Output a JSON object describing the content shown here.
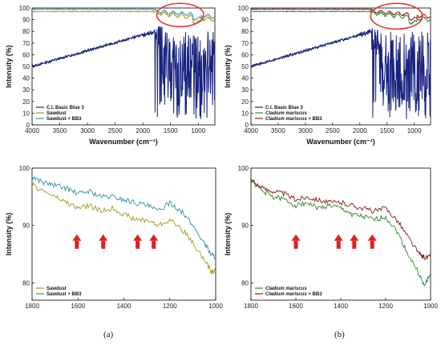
{
  "colors": {
    "navy": "#1a237e",
    "olive": "#a49b27",
    "teal": "#2f93a8",
    "green": "#2e8b2e",
    "maroon": "#8b1a1a",
    "highlight_red": "#e53935",
    "arrow_red": "#e02020"
  },
  "panel_labels": [
    "(a)",
    "(b)"
  ],
  "chart_data": [
    {
      "type": "line",
      "xlabel": "Wavenumber (cm⁻¹)",
      "ylabel": "Intensity (%)",
      "xlim": [
        4000,
        700
      ],
      "ylim": [
        0,
        100
      ],
      "xticks": [
        4000,
        3500,
        3000,
        2500,
        2000,
        1500,
        1000
      ],
      "yticks": [
        0,
        10,
        20,
        30,
        40,
        50,
        60,
        70,
        80,
        90,
        100
      ],
      "legend_position": "bottom-left",
      "highlight_ellipse": {
        "x_range": [
          1750,
          900
        ],
        "y_range": [
          84,
          104
        ]
      },
      "series": [
        {
          "name": "C.I. Basic Blue 3",
          "color_key": "navy",
          "style": "dye"
        },
        {
          "name": "Sawdust",
          "color_key": "olive",
          "style": "flat_a"
        },
        {
          "name": "Sawdust + BB3",
          "color_key": "teal",
          "style": "flat_b"
        }
      ]
    },
    {
      "type": "line",
      "xlabel": "Wavenumber (cm⁻¹)",
      "ylabel": "Intensity (%)",
      "xlim": [
        4000,
        700
      ],
      "ylim": [
        0,
        100
      ],
      "xticks": [
        4000,
        3500,
        3000,
        2500,
        2000,
        1500,
        1000
      ],
      "yticks": [
        0,
        10,
        20,
        30,
        40,
        50,
        60,
        70,
        80,
        90,
        100
      ],
      "legend_position": "bottom-left",
      "highlight_ellipse": {
        "x_range": [
          1800,
          850
        ],
        "y_range": [
          82,
          104
        ]
      },
      "series": [
        {
          "name": "C.I. Basic Blue 3",
          "color_key": "navy",
          "style": "dye"
        },
        {
          "name": "Cladium mariscus",
          "italic": true,
          "color_key": "green",
          "style": "flat_a"
        },
        {
          "name": "Cladium mariscus + BB3",
          "italic": true,
          "color_key": "maroon",
          "style": "flat_b"
        }
      ]
    },
    {
      "type": "line",
      "xlabel": "",
      "ylabel": "Intensity (%)",
      "xlim": [
        1800,
        1000
      ],
      "ylim": [
        77,
        100
      ],
      "xticks": [
        1800,
        1600,
        1400,
        1200,
        1000
      ],
      "yticks": [
        80,
        90,
        100
      ],
      "legend_position": "bottom-left",
      "arrows_at_x": [
        1605,
        1490,
        1340,
        1270
      ],
      "series": [
        {
          "name": "Sawdust",
          "color_key": "olive",
          "x": [
            1800,
            1750,
            1700,
            1650,
            1600,
            1550,
            1500,
            1450,
            1400,
            1350,
            1300,
            1250,
            1200,
            1150,
            1100,
            1050,
            1020,
            1000
          ],
          "y": [
            97,
            96,
            95,
            94,
            93,
            93.5,
            92.5,
            93,
            92,
            91,
            91,
            90,
            91,
            89.5,
            87,
            84,
            82,
            82
          ]
        },
        {
          "name": "Sawdust + BB3",
          "color_key": "teal",
          "x": [
            1800,
            1750,
            1700,
            1650,
            1600,
            1550,
            1500,
            1450,
            1400,
            1350,
            1300,
            1250,
            1200,
            1150,
            1100,
            1050,
            1020,
            1000
          ],
          "y": [
            98.5,
            97.5,
            97,
            96.5,
            95.5,
            96,
            95,
            95,
            94.5,
            94,
            93.5,
            92.5,
            94,
            92.5,
            90,
            87,
            85,
            84.5
          ]
        }
      ]
    },
    {
      "type": "line",
      "xlabel": "",
      "ylabel": "Intensity (%)",
      "xlim": [
        1800,
        1000
      ],
      "ylim": [
        77,
        100
      ],
      "xticks": [
        1800,
        1600,
        1400,
        1200,
        1000
      ],
      "yticks": [
        80,
        90,
        100
      ],
      "legend_position": "bottom-left",
      "arrows_at_x": [
        1600,
        1410,
        1340,
        1260
      ],
      "series": [
        {
          "name": "Cladium mariscus",
          "italic": true,
          "color_key": "green",
          "x": [
            1800,
            1750,
            1700,
            1650,
            1600,
            1550,
            1500,
            1450,
            1400,
            1350,
            1300,
            1250,
            1200,
            1150,
            1100,
            1050,
            1030,
            1000
          ],
          "y": [
            98,
            96,
            95,
            94.5,
            93.5,
            94,
            93,
            93.5,
            93,
            92,
            91.5,
            91,
            91.5,
            89,
            85,
            81.5,
            79.5,
            81.5
          ]
        },
        {
          "name": "Cladium mariscus + BB3",
          "italic": true,
          "color_key": "maroon",
          "x": [
            1800,
            1750,
            1700,
            1650,
            1600,
            1550,
            1500,
            1450,
            1400,
            1350,
            1300,
            1250,
            1200,
            1150,
            1100,
            1050,
            1030,
            1000
          ],
          "y": [
            98,
            96.5,
            96,
            95.5,
            94.5,
            95,
            94.5,
            94,
            94,
            93.5,
            93,
            92.5,
            93,
            91,
            88,
            85,
            84.5,
            84.5
          ]
        }
      ]
    }
  ]
}
